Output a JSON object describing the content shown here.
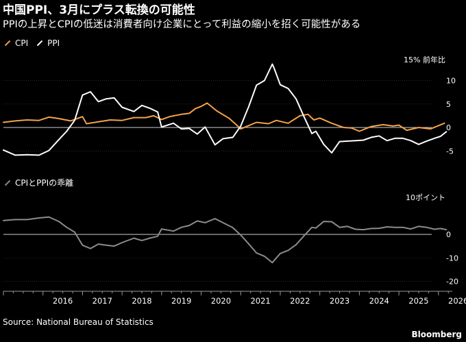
{
  "title": "中国PPI、3月にプラス転換の可能性",
  "subtitle": "PPIの上昇とCPIの低迷は消費者向け企業にとって利益の縮小を招く可能性がある",
  "source": "Source: National Bureau of Statistics",
  "brand": "Bloomberg",
  "colors": {
    "cpi": "#f5a34b",
    "ppi": "#ffffff",
    "spread": "#8c8c8c",
    "background": "#000000"
  },
  "chart_data": [
    {
      "type": "line",
      "title": "CPI / PPI",
      "unit_label": "15% 前年比",
      "y_ticks": [
        10,
        5,
        0,
        -5
      ],
      "y_tick_labels": [
        "10",
        "5",
        "0",
        "-5"
      ],
      "ylim": [
        -8,
        15
      ],
      "xlim": [
        2015.0,
        2026.35
      ],
      "series": [
        {
          "name": "CPI",
          "color": "#f5a34b",
          "x": [
            2015.0,
            2015.3,
            2015.6,
            2015.9,
            2016.15,
            2016.4,
            2016.7,
            2017.0,
            2017.1,
            2017.4,
            2017.7,
            2018.0,
            2018.3,
            2018.6,
            2018.8,
            2019.0,
            2019.2,
            2019.5,
            2019.7,
            2019.85,
            2020.0,
            2020.15,
            2020.4,
            2020.7,
            2020.9,
            2021.0,
            2021.2,
            2021.4,
            2021.7,
            2021.9,
            2022.2,
            2022.5,
            2022.7,
            2022.85,
            2023.0,
            2023.3,
            2023.6,
            2023.8,
            2024.0,
            2024.3,
            2024.6,
            2024.85,
            2025.0,
            2025.2,
            2025.5,
            2025.8,
            2026.0,
            2026.15
          ],
          "y": [
            1.1,
            1.4,
            1.6,
            1.5,
            2.2,
            1.9,
            1.4,
            2.3,
            0.8,
            1.2,
            1.6,
            1.5,
            2.1,
            2.1,
            2.5,
            1.7,
            2.3,
            2.8,
            3.0,
            4.0,
            4.5,
            5.2,
            3.5,
            2.0,
            0.5,
            -0.3,
            0.4,
            1.1,
            0.8,
            1.5,
            0.9,
            2.5,
            2.8,
            1.6,
            2.0,
            0.9,
            0.0,
            -0.1,
            -0.8,
            0.2,
            0.6,
            0.3,
            0.5,
            -0.6,
            0.0,
            -0.3,
            0.4,
            0.9
          ]
        },
        {
          "name": "PPI",
          "color": "#ffffff",
          "x": [
            2015.0,
            2015.3,
            2015.6,
            2015.9,
            2016.15,
            2016.4,
            2016.6,
            2016.8,
            2017.0,
            2017.2,
            2017.4,
            2017.6,
            2017.8,
            2018.0,
            2018.3,
            2018.5,
            2018.7,
            2018.9,
            2019.0,
            2019.3,
            2019.5,
            2019.7,
            2019.9,
            2020.1,
            2020.35,
            2020.55,
            2020.8,
            2021.0,
            2021.2,
            2021.4,
            2021.6,
            2021.8,
            2021.85,
            2022.0,
            2022.2,
            2022.4,
            2022.6,
            2022.8,
            2022.9,
            2023.1,
            2023.3,
            2023.5,
            2023.7,
            2023.9,
            2024.1,
            2024.3,
            2024.5,
            2024.7,
            2024.9,
            2025.1,
            2025.3,
            2025.5,
            2025.7,
            2025.9,
            2026.05,
            2026.2
          ],
          "y": [
            -4.8,
            -5.9,
            -5.8,
            -5.9,
            -4.9,
            -2.6,
            -0.8,
            1.5,
            6.9,
            7.6,
            5.5,
            6.1,
            6.3,
            4.3,
            3.4,
            4.7,
            4.1,
            3.3,
            0.1,
            0.9,
            -0.3,
            -0.2,
            -1.4,
            0.1,
            -3.7,
            -2.4,
            -2.1,
            0.3,
            4.4,
            9.0,
            10.0,
            13.5,
            12.5,
            9.1,
            8.3,
            6.1,
            2.3,
            -1.3,
            -0.8,
            -3.6,
            -5.4,
            -3.0,
            -2.9,
            -2.8,
            -2.7,
            -2.1,
            -1.8,
            -2.8,
            -2.3,
            -2.3,
            -2.8,
            -3.6,
            -2.9,
            -2.3,
            -1.9,
            -0.9
          ]
        }
      ]
    },
    {
      "type": "line",
      "title": "CPIとPPIの乖離",
      "unit_label": "10ポイント",
      "y_ticks": [
        0,
        -10,
        -20
      ],
      "y_tick_labels": [
        "0",
        "-10",
        "-20"
      ],
      "ylim": [
        -22,
        10
      ],
      "xlim": [
        2015.0,
        2026.35
      ],
      "series": [
        {
          "name": "CPIとPPIの乖離",
          "color": "#8c8c8c",
          "x": [
            2015.0,
            2015.3,
            2015.6,
            2015.9,
            2016.15,
            2016.4,
            2016.6,
            2016.8,
            2017.0,
            2017.2,
            2017.4,
            2017.6,
            2017.8,
            2018.0,
            2018.3,
            2018.5,
            2018.7,
            2018.9,
            2019.0,
            2019.3,
            2019.5,
            2019.7,
            2019.9,
            2020.1,
            2020.35,
            2020.55,
            2020.8,
            2021.0,
            2021.2,
            2021.4,
            2021.6,
            2021.8,
            2021.85,
            2022.0,
            2022.2,
            2022.4,
            2022.6,
            2022.8,
            2022.9,
            2023.1,
            2023.3,
            2023.5,
            2023.7,
            2023.9,
            2024.1,
            2024.3,
            2024.5,
            2024.7,
            2024.9,
            2025.1,
            2025.3,
            2025.5,
            2025.7,
            2025.9,
            2026.05,
            2026.2
          ],
          "y": [
            5.9,
            6.3,
            6.3,
            7.0,
            7.4,
            5.5,
            3.0,
            1.0,
            -4.6,
            -6.0,
            -4.1,
            -4.6,
            -5.0,
            -3.5,
            -1.6,
            -2.6,
            -1.6,
            -0.8,
            2.3,
            1.4,
            3.0,
            3.8,
            5.7,
            5.0,
            6.7,
            5.0,
            2.9,
            -0.3,
            -4.0,
            -7.9,
            -9.3,
            -12.0,
            -11.0,
            -8.1,
            -6.8,
            -4.4,
            -0.6,
            3.0,
            2.7,
            5.5,
            5.4,
            3.0,
            3.4,
            2.2,
            2.0,
            2.5,
            2.6,
            3.2,
            3.0,
            3.0,
            2.3,
            3.4,
            3.0,
            2.2,
            2.5,
            2.0
          ]
        }
      ]
    }
  ],
  "x_ticks": [
    2016,
    2017,
    2018,
    2019,
    2020,
    2021,
    2022,
    2023,
    2024,
    2025,
    2026
  ],
  "x_tick_labels": [
    "2016",
    "2017",
    "2018",
    "2019",
    "2020",
    "2021",
    "2022",
    "2023",
    "2024",
    "2025",
    "2026"
  ]
}
